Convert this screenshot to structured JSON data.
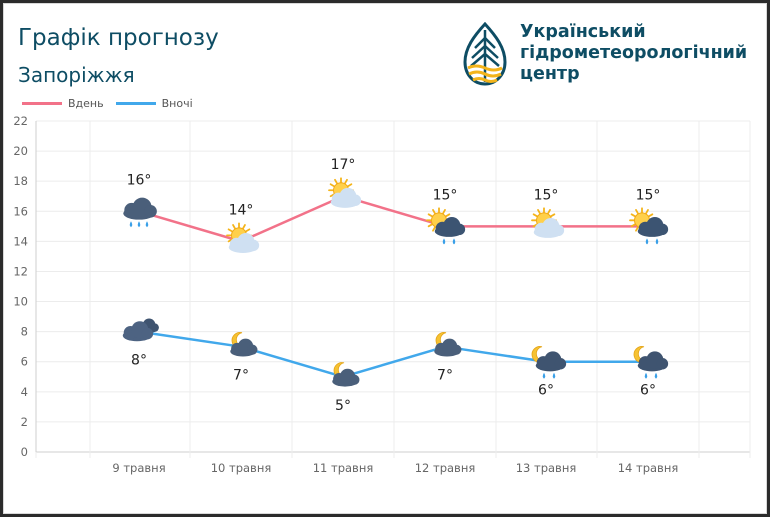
{
  "header": {
    "title": "Графік прогнозу",
    "city": "Запоріжжя",
    "org_lines": [
      "Український",
      "гідрометеорологічний",
      "центр"
    ]
  },
  "colors": {
    "day": "#f27289",
    "night": "#41a8eb",
    "title": "#0e4d64"
  },
  "chart_data": {
    "type": "line",
    "categories": [
      "9 травня",
      "10 травня",
      "11 травня",
      "12 травня",
      "13 травня",
      "14 травня"
    ],
    "ylim": [
      0,
      22
    ],
    "yticks": [
      0,
      2,
      4,
      6,
      8,
      10,
      12,
      14,
      16,
      18,
      20,
      22
    ],
    "grid": true,
    "legend_position": "top-left",
    "series": [
      {
        "name": "Вдень",
        "values": [
          16,
          14,
          17,
          15,
          15,
          15
        ],
        "labels": [
          "16°",
          "14°",
          "17°",
          "15°",
          "15°",
          "15°"
        ],
        "icons": [
          "cloud-rain-icon",
          "sun-cloud-icon",
          "sun-cloud-icon",
          "sun-cloud-rain-icon",
          "sun-cloud-icon",
          "sun-cloud-rain-icon"
        ]
      },
      {
        "name": "Вночі",
        "values": [
          8,
          7,
          5,
          7,
          6,
          6
        ],
        "labels": [
          "8°",
          "7°",
          "5°",
          "7°",
          "6°",
          "6°"
        ],
        "icons": [
          "cloudy-night-icon",
          "moon-cloud-icon",
          "moon-cloud-icon",
          "moon-cloud-icon",
          "moon-cloud-rain-icon",
          "moon-cloud-rain-icon"
        ]
      }
    ]
  }
}
